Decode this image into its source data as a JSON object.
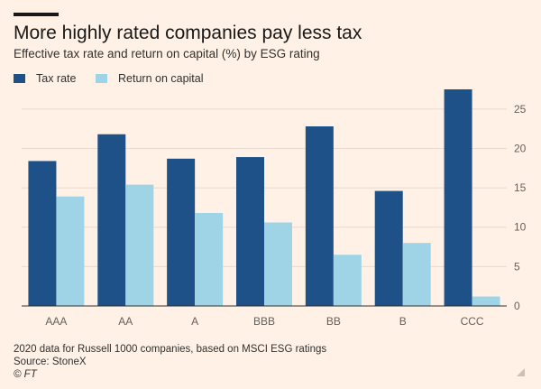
{
  "colors": {
    "background": "#fff1e5",
    "tax_rate": "#1d5187",
    "return_on_capital": "#9ed4e6",
    "axis": "#33302e",
    "grid": "#e8dacf"
  },
  "chart_data": {
    "type": "bar",
    "title": "More highly rated companies pay less tax",
    "subtitle": "Effective tax rate and return on capital (%) by ESG rating",
    "categories": [
      "AAA",
      "AA",
      "A",
      "BBB",
      "BB",
      "B",
      "CCC"
    ],
    "series": [
      {
        "name": "Tax rate",
        "values": [
          18.4,
          21.8,
          18.7,
          18.9,
          22.8,
          14.6,
          27.5
        ]
      },
      {
        "name": "Return on capital",
        "values": [
          13.9,
          15.4,
          11.8,
          10.6,
          6.5,
          8.0,
          1.2
        ]
      }
    ],
    "xlabel": "",
    "ylabel": "",
    "ylim": [
      0,
      27.5
    ],
    "yticks": [
      0,
      5,
      10,
      15,
      20,
      25
    ],
    "ytick_labels": [
      "0",
      "5",
      "10",
      "15",
      "20",
      "25"
    ],
    "legend": "top-left",
    "grid": true
  },
  "footer": {
    "note": "2020 data for Russell 1000 companies, based on MSCI ESG ratings",
    "source": "Source: StoneX",
    "copyright": "© FT"
  },
  "icons": {
    "resize": "resize-grip-icon"
  }
}
